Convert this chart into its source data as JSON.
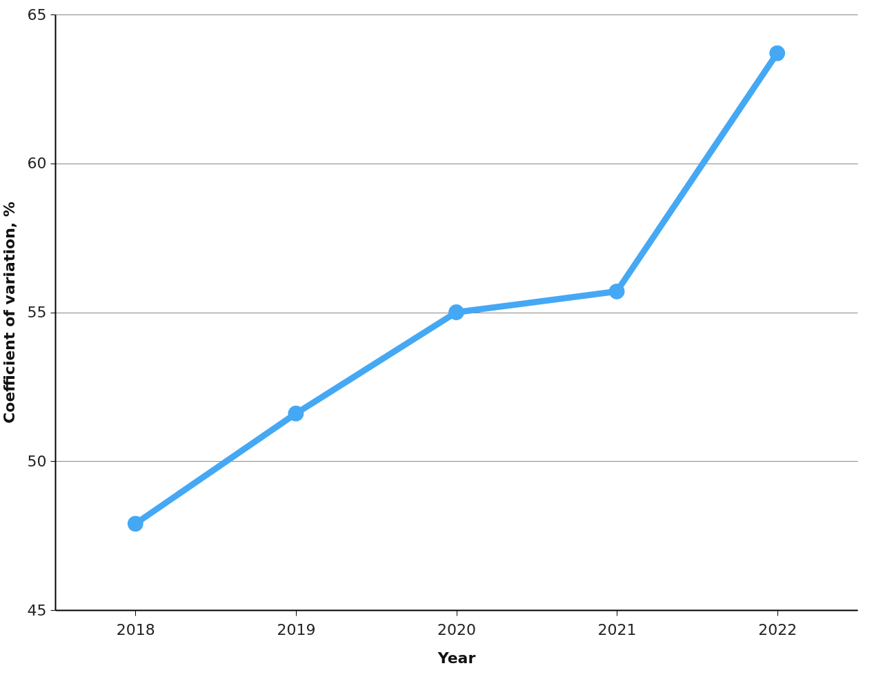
{
  "chart_data": {
    "type": "line",
    "xlabel": "Year",
    "ylabel": "Coefficient of variation, %",
    "categories": [
      "2018",
      "2019",
      "2020",
      "2021",
      "2022"
    ],
    "series": [
      {
        "color": "#45a8f4",
        "values": [
          47.9,
          51.6,
          55.0,
          55.7,
          63.7
        ]
      }
    ],
    "ylim": [
      45,
      65
    ],
    "yticks": [
      45,
      50,
      55,
      60,
      65
    ],
    "grid": "y",
    "marker": "circle",
    "line_style": "solid"
  }
}
